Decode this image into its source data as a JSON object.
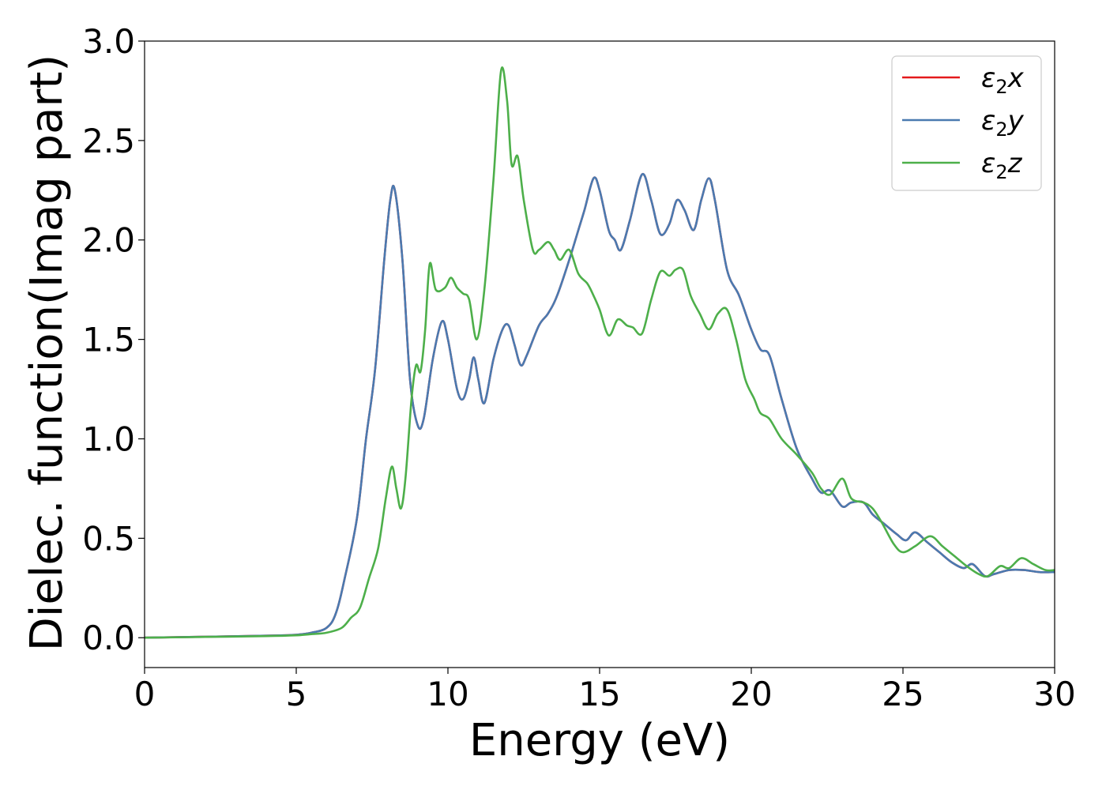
{
  "chart_data": {
    "type": "line",
    "title": "",
    "xlabel": "Energy (eV)",
    "ylabel": "Dielec. function(Imag part)",
    "xlim": [
      0,
      30
    ],
    "ylim": [
      -0.15,
      3.0
    ],
    "x_ticks": [
      0,
      5,
      10,
      15,
      20,
      25,
      30
    ],
    "x_tick_labels": [
      "0",
      "5",
      "10",
      "15",
      "20",
      "25",
      "30"
    ],
    "y_ticks": [
      0.0,
      0.5,
      1.0,
      1.5,
      2.0,
      2.5,
      3.0
    ],
    "y_tick_labels": [
      "0.0",
      "0.5",
      "1.0",
      "1.5",
      "2.0",
      "2.5",
      "3.0"
    ],
    "grid": false,
    "legend_position": "top-right",
    "series": [
      {
        "name": "ε2x",
        "legend_main": "ε",
        "legend_sub": "2",
        "legend_suffix": "x",
        "color": "#e41a1c",
        "points": [
          [
            0,
            0
          ],
          [
            2,
            0.005
          ],
          [
            4,
            0.01
          ],
          [
            5,
            0.015
          ],
          [
            5.5,
            0.025
          ],
          [
            6,
            0.05
          ],
          [
            6.3,
            0.12
          ],
          [
            6.6,
            0.3
          ],
          [
            7,
            0.6
          ],
          [
            7.3,
            1.0
          ],
          [
            7.6,
            1.35
          ],
          [
            7.9,
            1.9
          ],
          [
            8.1,
            2.2
          ],
          [
            8.25,
            2.25
          ],
          [
            8.5,
            1.9
          ],
          [
            8.75,
            1.3
          ],
          [
            9.0,
            1.07
          ],
          [
            9.2,
            1.1
          ],
          [
            9.5,
            1.4
          ],
          [
            9.8,
            1.59
          ],
          [
            10.0,
            1.5
          ],
          [
            10.3,
            1.25
          ],
          [
            10.5,
            1.2
          ],
          [
            10.7,
            1.3
          ],
          [
            10.85,
            1.41
          ],
          [
            11.0,
            1.3
          ],
          [
            11.2,
            1.18
          ],
          [
            11.5,
            1.4
          ],
          [
            11.8,
            1.55
          ],
          [
            12.0,
            1.57
          ],
          [
            12.2,
            1.47
          ],
          [
            12.4,
            1.37
          ],
          [
            12.6,
            1.42
          ],
          [
            13.0,
            1.57
          ],
          [
            13.3,
            1.63
          ],
          [
            13.6,
            1.72
          ],
          [
            14.0,
            1.9
          ],
          [
            14.3,
            2.05
          ],
          [
            14.5,
            2.15
          ],
          [
            14.8,
            2.31
          ],
          [
            15.0,
            2.25
          ],
          [
            15.3,
            2.05
          ],
          [
            15.5,
            2.0
          ],
          [
            15.7,
            1.95
          ],
          [
            16.0,
            2.1
          ],
          [
            16.4,
            2.33
          ],
          [
            16.7,
            2.2
          ],
          [
            17.0,
            2.03
          ],
          [
            17.3,
            2.08
          ],
          [
            17.55,
            2.2
          ],
          [
            17.8,
            2.15
          ],
          [
            18.1,
            2.05
          ],
          [
            18.35,
            2.2
          ],
          [
            18.6,
            2.31
          ],
          [
            18.8,
            2.2
          ],
          [
            19.2,
            1.85
          ],
          [
            19.6,
            1.72
          ],
          [
            20.0,
            1.55
          ],
          [
            20.3,
            1.45
          ],
          [
            20.6,
            1.42
          ],
          [
            21.0,
            1.2
          ],
          [
            21.5,
            0.95
          ],
          [
            22.0,
            0.8
          ],
          [
            22.3,
            0.73
          ],
          [
            22.6,
            0.74
          ],
          [
            23.0,
            0.66
          ],
          [
            23.3,
            0.68
          ],
          [
            23.7,
            0.68
          ],
          [
            24.0,
            0.62
          ],
          [
            24.4,
            0.57
          ],
          [
            24.8,
            0.52
          ],
          [
            25.1,
            0.49
          ],
          [
            25.4,
            0.53
          ],
          [
            25.8,
            0.48
          ],
          [
            26.2,
            0.43
          ],
          [
            26.6,
            0.38
          ],
          [
            27.0,
            0.35
          ],
          [
            27.3,
            0.37
          ],
          [
            27.7,
            0.31
          ],
          [
            28.0,
            0.32
          ],
          [
            28.5,
            0.34
          ],
          [
            29.0,
            0.34
          ],
          [
            29.5,
            0.33
          ],
          [
            30.0,
            0.33
          ]
        ]
      },
      {
        "name": "ε2y",
        "legend_main": "ε",
        "legend_sub": "2",
        "legend_suffix": "y",
        "color": "#4a7ab0",
        "points": [
          [
            0,
            0
          ],
          [
            2,
            0.005
          ],
          [
            4,
            0.01
          ],
          [
            5,
            0.015
          ],
          [
            5.5,
            0.025
          ],
          [
            6,
            0.05
          ],
          [
            6.3,
            0.12
          ],
          [
            6.6,
            0.3
          ],
          [
            7,
            0.6
          ],
          [
            7.3,
            1.0
          ],
          [
            7.6,
            1.35
          ],
          [
            7.9,
            1.9
          ],
          [
            8.1,
            2.2
          ],
          [
            8.25,
            2.25
          ],
          [
            8.5,
            1.9
          ],
          [
            8.75,
            1.3
          ],
          [
            9.0,
            1.07
          ],
          [
            9.2,
            1.1
          ],
          [
            9.5,
            1.4
          ],
          [
            9.8,
            1.59
          ],
          [
            10.0,
            1.5
          ],
          [
            10.3,
            1.25
          ],
          [
            10.5,
            1.2
          ],
          [
            10.7,
            1.3
          ],
          [
            10.85,
            1.41
          ],
          [
            11.0,
            1.3
          ],
          [
            11.2,
            1.18
          ],
          [
            11.5,
            1.4
          ],
          [
            11.8,
            1.55
          ],
          [
            12.0,
            1.57
          ],
          [
            12.2,
            1.47
          ],
          [
            12.4,
            1.37
          ],
          [
            12.6,
            1.42
          ],
          [
            13.0,
            1.57
          ],
          [
            13.3,
            1.63
          ],
          [
            13.6,
            1.72
          ],
          [
            14.0,
            1.9
          ],
          [
            14.3,
            2.05
          ],
          [
            14.5,
            2.15
          ],
          [
            14.8,
            2.31
          ],
          [
            15.0,
            2.25
          ],
          [
            15.3,
            2.05
          ],
          [
            15.5,
            2.0
          ],
          [
            15.7,
            1.95
          ],
          [
            16.0,
            2.1
          ],
          [
            16.4,
            2.33
          ],
          [
            16.7,
            2.2
          ],
          [
            17.0,
            2.03
          ],
          [
            17.3,
            2.08
          ],
          [
            17.55,
            2.2
          ],
          [
            17.8,
            2.15
          ],
          [
            18.1,
            2.05
          ],
          [
            18.35,
            2.2
          ],
          [
            18.6,
            2.31
          ],
          [
            18.8,
            2.2
          ],
          [
            19.2,
            1.85
          ],
          [
            19.6,
            1.72
          ],
          [
            20.0,
            1.55
          ],
          [
            20.3,
            1.45
          ],
          [
            20.6,
            1.42
          ],
          [
            21.0,
            1.2
          ],
          [
            21.5,
            0.95
          ],
          [
            22.0,
            0.8
          ],
          [
            22.3,
            0.73
          ],
          [
            22.6,
            0.74
          ],
          [
            23.0,
            0.66
          ],
          [
            23.3,
            0.68
          ],
          [
            23.7,
            0.68
          ],
          [
            24.0,
            0.62
          ],
          [
            24.4,
            0.57
          ],
          [
            24.8,
            0.52
          ],
          [
            25.1,
            0.49
          ],
          [
            25.4,
            0.53
          ],
          [
            25.8,
            0.48
          ],
          [
            26.2,
            0.43
          ],
          [
            26.6,
            0.38
          ],
          [
            27.0,
            0.35
          ],
          [
            27.3,
            0.37
          ],
          [
            27.7,
            0.31
          ],
          [
            28.0,
            0.32
          ],
          [
            28.5,
            0.34
          ],
          [
            29.0,
            0.34
          ],
          [
            29.5,
            0.33
          ],
          [
            30.0,
            0.33
          ]
        ]
      },
      {
        "name": "ε2z",
        "legend_main": "ε",
        "legend_sub": "2",
        "legend_suffix": "z",
        "color": "#4daf4a",
        "points": [
          [
            0,
            0
          ],
          [
            2,
            0.004
          ],
          [
            4,
            0.008
          ],
          [
            5,
            0.012
          ],
          [
            5.5,
            0.018
          ],
          [
            6,
            0.025
          ],
          [
            6.5,
            0.05
          ],
          [
            6.8,
            0.1
          ],
          [
            7.1,
            0.15
          ],
          [
            7.4,
            0.3
          ],
          [
            7.7,
            0.45
          ],
          [
            7.95,
            0.7
          ],
          [
            8.15,
            0.86
          ],
          [
            8.3,
            0.75
          ],
          [
            8.45,
            0.65
          ],
          [
            8.6,
            0.8
          ],
          [
            8.8,
            1.2
          ],
          [
            8.95,
            1.37
          ],
          [
            9.1,
            1.34
          ],
          [
            9.25,
            1.55
          ],
          [
            9.4,
            1.88
          ],
          [
            9.6,
            1.75
          ],
          [
            9.9,
            1.76
          ],
          [
            10.1,
            1.81
          ],
          [
            10.3,
            1.76
          ],
          [
            10.5,
            1.73
          ],
          [
            10.7,
            1.7
          ],
          [
            10.95,
            1.5
          ],
          [
            11.2,
            1.75
          ],
          [
            11.5,
            2.3
          ],
          [
            11.75,
            2.85
          ],
          [
            11.95,
            2.7
          ],
          [
            12.1,
            2.38
          ],
          [
            12.3,
            2.42
          ],
          [
            12.5,
            2.2
          ],
          [
            12.8,
            1.95
          ],
          [
            13.0,
            1.95
          ],
          [
            13.3,
            1.99
          ],
          [
            13.5,
            1.95
          ],
          [
            13.7,
            1.9
          ],
          [
            14.0,
            1.95
          ],
          [
            14.3,
            1.83
          ],
          [
            14.6,
            1.78
          ],
          [
            14.8,
            1.72
          ],
          [
            15.0,
            1.65
          ],
          [
            15.3,
            1.52
          ],
          [
            15.6,
            1.6
          ],
          [
            15.9,
            1.57
          ],
          [
            16.1,
            1.56
          ],
          [
            16.4,
            1.53
          ],
          [
            16.7,
            1.7
          ],
          [
            17.0,
            1.84
          ],
          [
            17.3,
            1.82
          ],
          [
            17.5,
            1.85
          ],
          [
            17.75,
            1.85
          ],
          [
            18.0,
            1.72
          ],
          [
            18.3,
            1.63
          ],
          [
            18.6,
            1.55
          ],
          [
            18.9,
            1.63
          ],
          [
            19.2,
            1.65
          ],
          [
            19.5,
            1.5
          ],
          [
            19.8,
            1.3
          ],
          [
            20.1,
            1.2
          ],
          [
            20.3,
            1.13
          ],
          [
            20.6,
            1.1
          ],
          [
            21.0,
            1.0
          ],
          [
            21.5,
            0.92
          ],
          [
            22.0,
            0.83
          ],
          [
            22.3,
            0.75
          ],
          [
            22.6,
            0.72
          ],
          [
            23.0,
            0.8
          ],
          [
            23.3,
            0.7
          ],
          [
            23.7,
            0.68
          ],
          [
            24.0,
            0.65
          ],
          [
            24.3,
            0.58
          ],
          [
            24.7,
            0.47
          ],
          [
            25.0,
            0.43
          ],
          [
            25.4,
            0.46
          ],
          [
            25.9,
            0.51
          ],
          [
            26.3,
            0.46
          ],
          [
            26.7,
            0.41
          ],
          [
            27.1,
            0.36
          ],
          [
            27.5,
            0.32
          ],
          [
            27.8,
            0.31
          ],
          [
            28.2,
            0.36
          ],
          [
            28.5,
            0.35
          ],
          [
            28.9,
            0.4
          ],
          [
            29.3,
            0.37
          ],
          [
            29.7,
            0.34
          ],
          [
            30.0,
            0.34
          ]
        ]
      }
    ]
  }
}
